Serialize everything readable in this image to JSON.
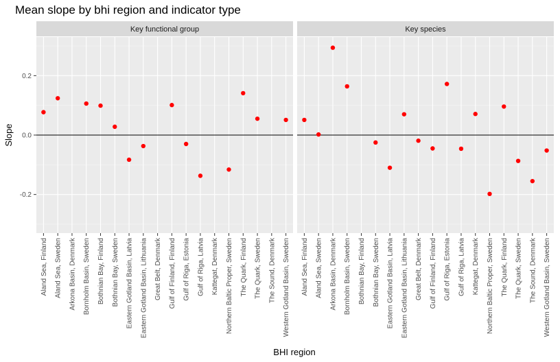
{
  "chart_data": {
    "type": "scatter",
    "title": "Mean slope by bhi region and indicator type",
    "xlabel": "BHI region",
    "ylabel": "Slope",
    "ylim": [
      -0.33,
      0.33
    ],
    "yticks": [
      -0.2,
      0.0,
      0.2
    ],
    "ytick_labels": [
      "-0.2",
      "0.0",
      "0.2"
    ],
    "grid": true,
    "reference_line_y": 0,
    "point_color": "#ff0000",
    "categories": [
      "Aland Sea, Finland",
      "Aland Sea, Sweden",
      "Arkona Basin, Denmark",
      "Bornholm Basin, Sweden",
      "Bothnian Bay, Finland",
      "Bothnian Bay, Sweden",
      "Eastern Gotland Basin, Latvia",
      "Eastern Gotland Basin, Lithuania",
      "Great Belt, Denmark",
      "Gulf of Finland, Finland",
      "Gulf of Riga, Estonia",
      "Gulf of Riga, Latvia",
      "Kattegat, Denmark",
      "Northern Baltic Proper, Sweden",
      "The Quark, Finland",
      "The Quark, Sweden",
      "The Sound, Denmark",
      "Western Gotland Basin, Sweden"
    ],
    "panels": [
      {
        "name": "Key functional group",
        "values": [
          0.077,
          0.124,
          null,
          0.106,
          0.099,
          0.028,
          -0.083,
          -0.037,
          null,
          0.101,
          -0.03,
          -0.137,
          null,
          -0.116,
          0.141,
          0.055,
          null,
          0.051
        ]
      },
      {
        "name": "Key species",
        "values": [
          0.051,
          0.002,
          0.294,
          0.164,
          null,
          -0.025,
          -0.11,
          0.07,
          -0.019,
          -0.045,
          0.172,
          -0.046,
          0.071,
          -0.198,
          0.096,
          -0.087,
          -0.155,
          -0.052
        ]
      }
    ]
  }
}
